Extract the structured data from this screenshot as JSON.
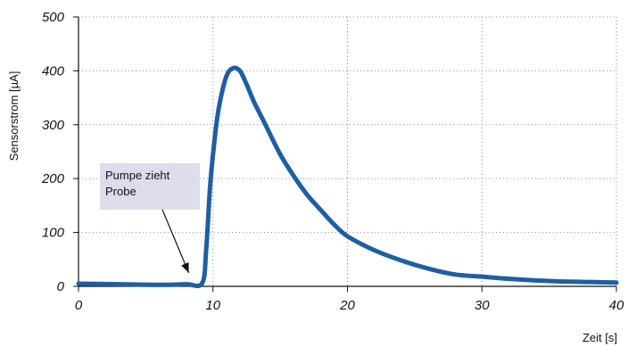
{
  "chart_data": {
    "type": "line",
    "xlabel": "Zeit [s]",
    "ylabel": "Sensorstrom [µA]",
    "xlim": [
      0,
      40
    ],
    "ylim": [
      0,
      500
    ],
    "xticks": [
      "0",
      "10",
      "20",
      "30",
      "40"
    ],
    "yticks": [
      "0",
      "100",
      "200",
      "300",
      "400",
      "500"
    ],
    "grid": true,
    "series": [
      {
        "color": "#1d5fa3",
        "x": [
          0,
          3,
          6,
          8,
          9.2,
          9.5,
          9.8,
          10.2,
          10.5,
          11,
          11.5,
          12,
          12.5,
          13,
          13.5,
          14,
          15,
          16,
          17,
          18,
          19,
          20,
          22,
          24,
          26,
          28,
          30,
          32,
          34,
          36,
          38,
          40
        ],
        "y": [
          5,
          4,
          3,
          4,
          6,
          70,
          190,
          290,
          340,
          390,
          405,
          400,
          375,
          345,
          320,
          295,
          245,
          205,
          170,
          142,
          115,
          93,
          67,
          48,
          33,
          22,
          18,
          14,
          11,
          9,
          8,
          7
        ]
      }
    ],
    "annotations": [
      {
        "text_lines": [
          "Pumpe zieht",
          "Probe"
        ],
        "points_to": {
          "x": 8.2,
          "y": 25
        }
      }
    ]
  }
}
